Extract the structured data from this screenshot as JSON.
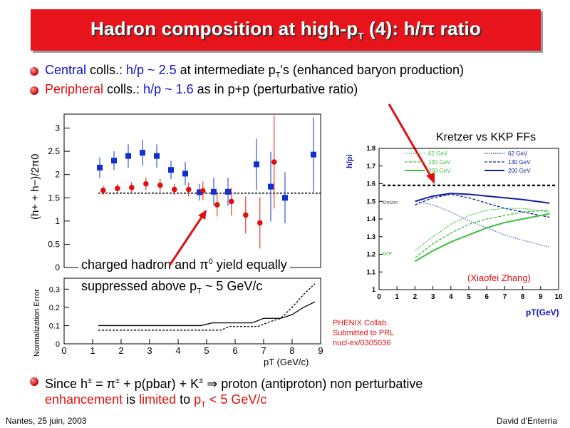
{
  "title": {
    "main": "Hadron composition at high-p",
    "sub": "T",
    "rest": " (4): h/π ratio"
  },
  "bullets": [
    {
      "w1": "Central",
      "w2": " colls.: ",
      "w3": "h/p ~ 2.5",
      "w4": " at intermediate p",
      "w5": "T",
      "w6": "'s (enhanced baryon production)"
    },
    {
      "w1": "Peripheral",
      "w2": " colls.: ",
      "w3": "h/p ~ 1.6",
      "w4": " as in p+p (perturbative ratio)"
    },
    {
      "a": "Since h",
      "b": "±",
      "c": " = π",
      "d": "±",
      "e": " + p(pbar) + K",
      "f": "±",
      "g": " ⇒ proton (antiproton) non perturbative",
      "h1": "enhancement",
      "h2": " is ",
      "h3": "limited",
      "h4": " to ",
      "h5": "p",
      "h6": "T",
      "h7": " < 5 GeV/c"
    }
  ],
  "overlay": {
    "l1a": "charged hadron and π",
    "l1b": "0",
    "l1c": " yield equally",
    "l2a": "suppressed above p",
    "l2b": "T",
    "l2c": " ~ 5 GeV/c"
  },
  "right_labels": {
    "kretzer": "Kretzer vs KKP FFs",
    "author": "(Xiaofei Zhang)",
    "phenix1": "PHENIX Collab.",
    "phenix2": "Submitted to PRL",
    "phenix3": "nucl-ex/0305036"
  },
  "footer": {
    "left": "Nantes, 25 juin, 2003",
    "right": "David d'Enterria"
  },
  "colors": {
    "accent": "#e8141c",
    "blue": "#1010c8"
  },
  "chart_data": [
    {
      "type": "scatter",
      "ylabel": "(h+ + h−)/2π0",
      "yticks": [
        "0",
        "0.5",
        "1",
        "1.5",
        "2",
        "2.5",
        "3"
      ],
      "ylim": [
        0,
        3.3
      ],
      "xlim": [
        0,
        9
      ],
      "series": [
        {
          "name": "Central",
          "color": "#1030d0",
          "marker": "square",
          "x": [
            1.25,
            1.75,
            2.25,
            2.75,
            3.25,
            3.75,
            4.25,
            4.75,
            5.25,
            5.75,
            6.75,
            7.25,
            7.75,
            8.75
          ],
          "y": [
            2.15,
            2.3,
            2.4,
            2.47,
            2.4,
            2.1,
            2.02,
            1.62,
            1.63,
            1.63,
            2.22,
            1.74,
            1.5,
            2.43
          ],
          "err": [
            0.22,
            0.2,
            0.25,
            0.28,
            0.25,
            0.2,
            0.25,
            0.18,
            0.3,
            0.3,
            0.55,
            0.75,
            0.55,
            0.8
          ]
        },
        {
          "name": "Peripheral",
          "color": "#e01010",
          "marker": "circle",
          "x": [
            1.37,
            1.87,
            2.37,
            2.87,
            3.37,
            3.87,
            4.37,
            4.87,
            5.37,
            5.87,
            6.37,
            6.87,
            7.37
          ],
          "y": [
            1.66,
            1.7,
            1.72,
            1.8,
            1.77,
            1.68,
            1.68,
            1.65,
            1.35,
            1.42,
            1.13,
            0.96,
            2.27
          ],
          "err": [
            0.1,
            0.1,
            0.12,
            0.14,
            0.14,
            0.12,
            0.15,
            0.2,
            0.25,
            0.3,
            0.4,
            0.55,
            1.0
          ]
        }
      ],
      "reference_line": 1.6
    },
    {
      "type": "line",
      "ylabel": "Normalization Error",
      "xlabel": "pT (GeV/c)",
      "yticks": [
        "0",
        "0.1",
        "0.2",
        "0.3"
      ],
      "xticks": [
        "0",
        "1",
        "2",
        "3",
        "4",
        "5",
        "6",
        "7",
        "8",
        "9"
      ],
      "ylim": [
        0,
        0.36
      ],
      "xlim": [
        0,
        9
      ],
      "series": [
        {
          "style": "solid",
          "x": [
            1.2,
            4.8,
            5.2,
            6.6,
            7.0,
            7.6,
            8.0,
            8.4,
            8.8
          ],
          "y": [
            0.1,
            0.1,
            0.115,
            0.115,
            0.14,
            0.14,
            0.16,
            0.2,
            0.23
          ]
        },
        {
          "style": "dashed",
          "x": [
            1.2,
            5.5,
            5.8,
            6.8,
            7.2,
            7.6,
            8.0,
            8.4,
            8.8
          ],
          "y": [
            0.075,
            0.075,
            0.095,
            0.095,
            0.12,
            0.14,
            0.2,
            0.27,
            0.33
          ]
        }
      ]
    },
    {
      "type": "line",
      "ylabel": "h/pi",
      "xlabel": "pT(GeV)",
      "yticks": [
        "1",
        "1.1",
        "1.2",
        "1.3",
        "1.4",
        "1.5",
        "1.6",
        "1.7",
        "1.8"
      ],
      "xticks": [
        "0",
        "1",
        "2",
        "3",
        "4",
        "5",
        "6",
        "7",
        "8",
        "9",
        "10"
      ],
      "ylim": [
        1,
        1.8
      ],
      "xlim": [
        0,
        10
      ],
      "legend": [
        "62 GeV",
        "130 GeV",
        "200 GeV",
        "62 GeV",
        "130 GeV",
        "200 GeV"
      ],
      "curve_labels": [
        "Kretzer",
        "KKP"
      ],
      "series": [
        {
          "name": "Kretzer 200",
          "color": "#1020a0",
          "style": "solid",
          "x": [
            2,
            3,
            4,
            5,
            6,
            7,
            8,
            9.5
          ],
          "y": [
            1.5,
            1.53,
            1.545,
            1.54,
            1.53,
            1.52,
            1.51,
            1.49
          ]
        },
        {
          "name": "Kretzer 130",
          "color": "#1020a0",
          "style": "dashed",
          "x": [
            2,
            3,
            4,
            5,
            6,
            7,
            8,
            9.5
          ],
          "y": [
            1.48,
            1.52,
            1.54,
            1.52,
            1.49,
            1.46,
            1.44,
            1.41
          ]
        },
        {
          "name": "Kretzer 62",
          "color": "#6070c0",
          "style": "dotted",
          "x": [
            2,
            3,
            4,
            5,
            6,
            7,
            8,
            9.5
          ],
          "y": [
            1.5,
            1.48,
            1.44,
            1.39,
            1.35,
            1.31,
            1.28,
            1.24
          ]
        },
        {
          "name": "KKP 200",
          "color": "#3cc03c",
          "style": "solid",
          "x": [
            2,
            3,
            4,
            5,
            6,
            7,
            8,
            9.5
          ],
          "y": [
            1.16,
            1.22,
            1.27,
            1.31,
            1.35,
            1.38,
            1.4,
            1.43
          ]
        },
        {
          "name": "KKP 130",
          "color": "#3cc03c",
          "style": "dashed",
          "x": [
            2,
            3,
            4,
            5,
            6,
            7,
            8,
            9.5
          ],
          "y": [
            1.18,
            1.26,
            1.32,
            1.37,
            1.4,
            1.42,
            1.44,
            1.45
          ]
        },
        {
          "name": "KKP 62",
          "color": "#3cc03c",
          "style": "dotted",
          "x": [
            2,
            3,
            4,
            5,
            6,
            7,
            8,
            9.5
          ],
          "y": [
            1.22,
            1.3,
            1.37,
            1.42,
            1.45,
            1.46,
            1.46,
            1.44
          ]
        }
      ],
      "reference_line": 1.59
    }
  ]
}
